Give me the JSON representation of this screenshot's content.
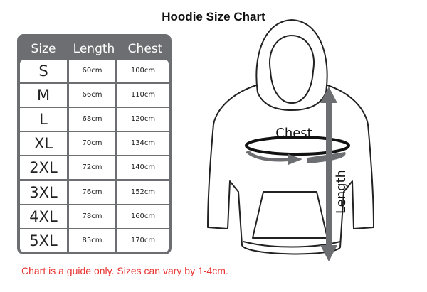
{
  "title": "Hoodie Size Chart",
  "table": {
    "headers": [
      "Size",
      "Length",
      "Chest"
    ],
    "rows": [
      [
        "S",
        "60cm",
        "100cm"
      ],
      [
        "M",
        "66cm",
        "110cm"
      ],
      [
        "L",
        "68cm",
        "120cm"
      ],
      [
        "XL",
        "70cm",
        "134cm"
      ],
      [
        "2XL",
        "72cm",
        "140cm"
      ],
      [
        "3XL",
        "76cm",
        "152cm"
      ],
      [
        "4XL",
        "78cm",
        "160cm"
      ],
      [
        "5XL",
        "85cm",
        "170cm"
      ]
    ]
  },
  "diagram": {
    "chest_label": "Chest",
    "length_label": "Length"
  },
  "footer": "Chart is a guide only. Sizes can vary by 1-4cm.",
  "colors": {
    "table": "#6d6e71",
    "footer": "#e8332f",
    "arrow": "#6d6e71"
  }
}
